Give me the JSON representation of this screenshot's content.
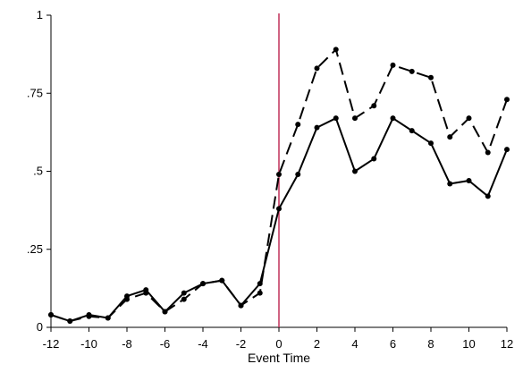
{
  "chart_data": {
    "type": "line",
    "xlabel": "Event Time",
    "ylabel": "",
    "xlim": [
      -12,
      12
    ],
    "ylim": [
      0,
      1
    ],
    "xticks": [
      {
        "value": -12,
        "label": "-12"
      },
      {
        "value": -10,
        "label": "-10"
      },
      {
        "value": -8,
        "label": "-8"
      },
      {
        "value": -6,
        "label": "-6"
      },
      {
        "value": -4,
        "label": "-4"
      },
      {
        "value": -2,
        "label": "-2"
      },
      {
        "value": 0,
        "label": "0"
      },
      {
        "value": 2,
        "label": "2"
      },
      {
        "value": 4,
        "label": "4"
      },
      {
        "value": 6,
        "label": "6"
      },
      {
        "value": 8,
        "label": "8"
      },
      {
        "value": 10,
        "label": "10"
      },
      {
        "value": 12,
        "label": "12"
      }
    ],
    "yticks": [
      {
        "value": 0,
        "label": "0"
      },
      {
        "value": 0.25,
        "label": ".25"
      },
      {
        "value": 0.5,
        "label": ".5"
      },
      {
        "value": 0.75,
        "label": ".75"
      },
      {
        "value": 1,
        "label": "1"
      }
    ],
    "grid": false,
    "vline": {
      "x": 0,
      "color": "#c0305a"
    },
    "x": [
      -12,
      -11,
      -10,
      -9,
      -8,
      -7,
      -6,
      -5,
      -4,
      -3,
      -2,
      -1,
      0,
      1,
      2,
      3,
      4,
      5,
      6,
      7,
      8,
      9,
      10,
      11,
      12
    ],
    "series": [
      {
        "style": "solid",
        "color": "#000000",
        "values": [
          0.04,
          0.02,
          0.04,
          0.03,
          0.1,
          0.12,
          0.05,
          0.11,
          0.14,
          0.15,
          0.07,
          0.14,
          0.38,
          0.49,
          0.64,
          0.67,
          0.5,
          0.54,
          0.67,
          0.63,
          0.59,
          0.46,
          0.47,
          0.42,
          0.57
        ]
      },
      {
        "style": "dashed",
        "color": "#000000",
        "values": [
          0.04,
          0.02,
          0.035,
          0.03,
          0.09,
          0.11,
          0.05,
          0.09,
          0.14,
          0.15,
          0.07,
          0.11,
          0.49,
          0.65,
          0.83,
          0.89,
          0.67,
          0.71,
          0.84,
          0.82,
          0.8,
          0.61,
          0.67,
          0.56,
          0.73
        ]
      }
    ]
  }
}
